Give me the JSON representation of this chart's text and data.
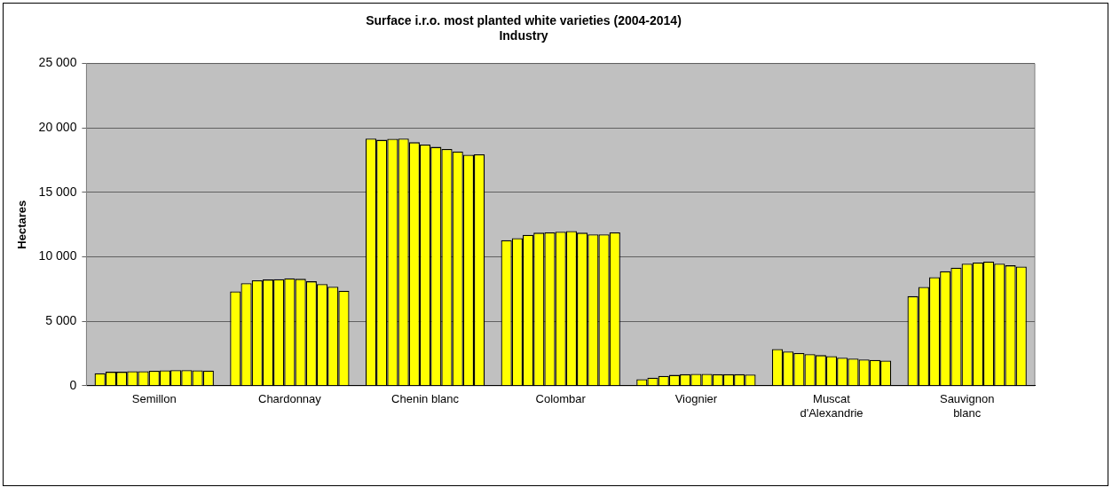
{
  "chart_data": {
    "type": "bar",
    "title": "Surface i.r.o. most planted white varieties (2004-2014)",
    "subtitle": "Industry",
    "ylabel": "Hectares",
    "categories": [
      "Semillon",
      "Chardonnay",
      "Chenin blanc",
      "Colombar",
      "Viognier",
      "Muscat d'Alexandrie",
      "Sauvignon blanc"
    ],
    "series": [
      {
        "color": "#ffff00",
        "values": [
          970,
          7320,
          19180,
          11290,
          500,
          2840,
          6950
        ]
      },
      {
        "color": "#ffff00",
        "values": [
          1080,
          7950,
          19080,
          11450,
          630,
          2660,
          7660
        ]
      },
      {
        "color": "#ffff00",
        "values": [
          1080,
          8180,
          19160,
          11710,
          760,
          2530,
          8420
        ]
      },
      {
        "color": "#ffff00",
        "values": [
          1130,
          8240,
          19180,
          11870,
          840,
          2450,
          8890
        ]
      },
      {
        "color": "#ffff00",
        "values": [
          1130,
          8260,
          18890,
          11890,
          890,
          2370,
          9160
        ]
      },
      {
        "color": "#ffff00",
        "values": [
          1160,
          8340,
          18710,
          11950,
          920,
          2290,
          9470
        ]
      },
      {
        "color": "#ffff00",
        "values": [
          1190,
          8290,
          18530,
          12000,
          920,
          2180,
          9550
        ]
      },
      {
        "color": "#ffff00",
        "values": [
          1210,
          8100,
          18370,
          11870,
          890,
          2110,
          9630
        ]
      },
      {
        "color": "#ffff00",
        "values": [
          1210,
          7890,
          18180,
          11740,
          890,
          2030,
          9470
        ]
      },
      {
        "color": "#ffff00",
        "values": [
          1190,
          7680,
          17920,
          11740,
          890,
          2000,
          9340
        ]
      },
      {
        "color": "#ffff00",
        "values": [
          1180,
          7370,
          17950,
          11890,
          870,
          1950,
          9240
        ]
      }
    ],
    "ylim": [
      0,
      25000
    ],
    "yticks": [
      {
        "value": 0,
        "label": "0"
      },
      {
        "value": 5000,
        "label": "5 000"
      },
      {
        "value": 10000,
        "label": "10 000"
      },
      {
        "value": 15000,
        "label": "15 000"
      },
      {
        "value": 20000,
        "label": "20 000"
      },
      {
        "value": 25000,
        "label": "25 000"
      }
    ],
    "grid": "y",
    "legend": false
  }
}
